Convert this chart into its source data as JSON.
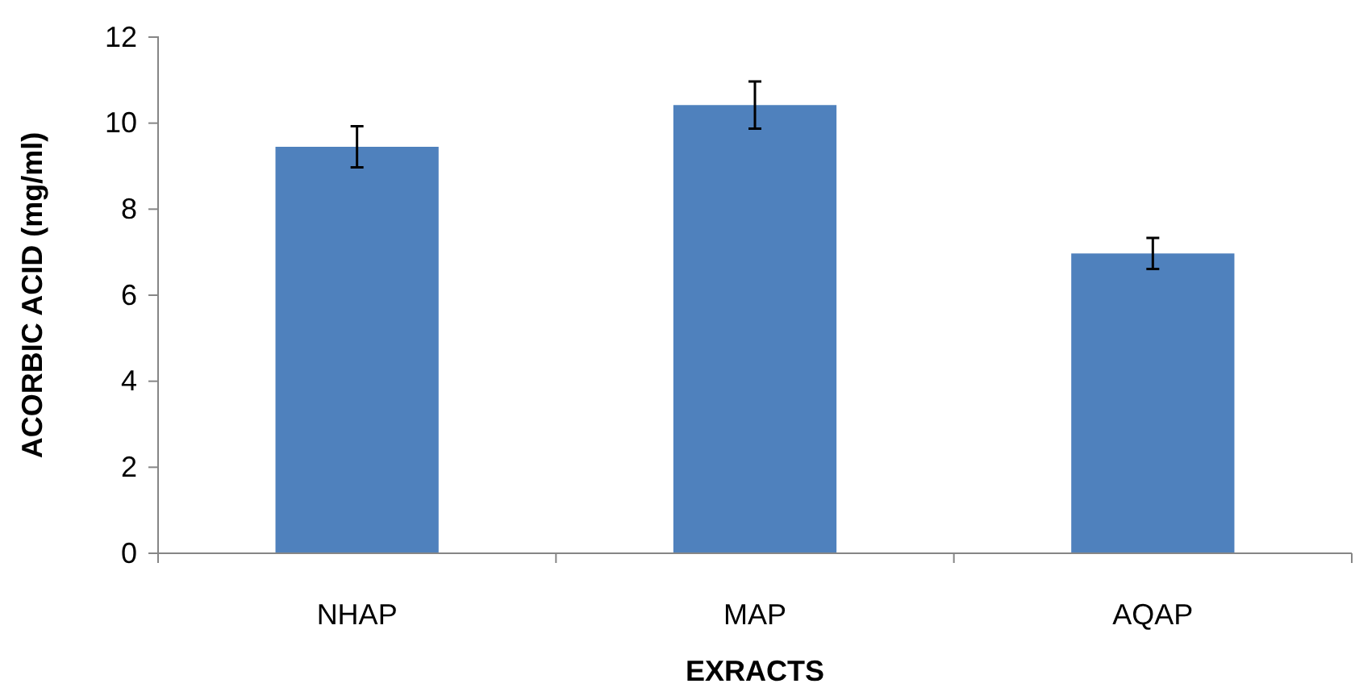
{
  "chart_data": {
    "type": "bar",
    "xlabel": "EXRACTS",
    "ylabel": "ACORBIC ACID (mg/ml)",
    "categories": [
      "NHAP",
      "MAP",
      "AQAP"
    ],
    "values": [
      9.45,
      10.42,
      6.97
    ],
    "errors": [
      0.48,
      0.55,
      0.36
    ],
    "color": "#4f81bd",
    "ylim": [
      0,
      12
    ],
    "yticks": [
      0,
      2,
      4,
      6,
      8,
      10,
      12
    ],
    "grid": false
  }
}
